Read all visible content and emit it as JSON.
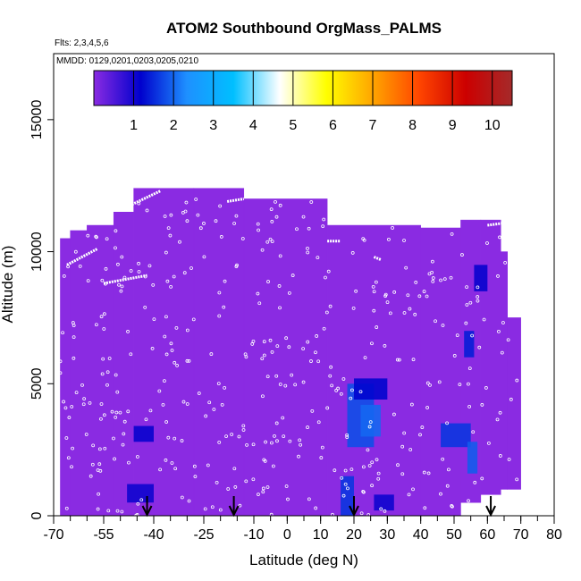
{
  "chart_data": {
    "type": "heatmap",
    "title": "ATOM2 Southbound OrgMass_PALMS",
    "flights_note": "Flts: 2,3,4,5,6",
    "dates_note": "MMDD: 0129,0201,0203,0205,0210",
    "xlabel": "Latitude (deg N)",
    "ylabel": "Altitude (m)",
    "xlim": [
      -70,
      80
    ],
    "ylim": [
      0,
      17500
    ],
    "x_ticks": [
      -70,
      -55,
      -40,
      -25,
      -10,
      0,
      10,
      20,
      30,
      40,
      50,
      60,
      70,
      80
    ],
    "x_minor_step": 5,
    "y_ticks": [
      0,
      5000,
      10000,
      15000
    ],
    "colorbar": {
      "range": [
        0,
        10.5
      ],
      "ticks": [
        1,
        2,
        3,
        4,
        5,
        6,
        7,
        8,
        9,
        10
      ],
      "colors": [
        "#8a2be2",
        "#0000cd",
        "#1e90ff",
        "#00bfff",
        "#ffffff",
        "#ffff00",
        "#ffa500",
        "#ff4500",
        "#cc0000",
        "#a52a2a"
      ]
    },
    "background_color": "#8a2be2",
    "coverage": [
      {
        "x0": -68,
        "x1": -65,
        "y0": 0,
        "y1": 10500
      },
      {
        "x0": -65,
        "x1": -60,
        "y0": 0,
        "y1": 10800
      },
      {
        "x0": -60,
        "x1": -52,
        "y0": 0,
        "y1": 11000
      },
      {
        "x0": -52,
        "x1": -46,
        "y0": 0,
        "y1": 11500
      },
      {
        "x0": -46,
        "x1": -28,
        "y0": 0,
        "y1": 12400
      },
      {
        "x0": -28,
        "x1": -13,
        "y0": 0,
        "y1": 12400
      },
      {
        "x0": -13,
        "x1": 12,
        "y0": 0,
        "y1": 12000
      },
      {
        "x0": 12,
        "x1": 40,
        "y0": 0,
        "y1": 11000
      },
      {
        "x0": 40,
        "x1": 52,
        "y0": 0,
        "y1": 10900
      },
      {
        "x0": 52,
        "x1": 58,
        "y0": 500,
        "y1": 11200
      },
      {
        "x0": 58,
        "x1": 64,
        "y0": 800,
        "y1": 11200
      },
      {
        "x0": 64,
        "x1": 66,
        "y0": 1000,
        "y1": 10000
      },
      {
        "x0": 66,
        "x1": 70,
        "y0": 1000,
        "y1": 7500
      }
    ],
    "dark_patches": [
      {
        "x0": 16,
        "x1": 20,
        "y0": 0,
        "y1": 1500,
        "value": 1.6
      },
      {
        "x0": 18,
        "x1": 26,
        "y0": 2600,
        "y1": 5000,
        "value": 1.8
      },
      {
        "x0": 22,
        "x1": 28,
        "y0": 3000,
        "y1": 4200,
        "value": 2.0
      },
      {
        "x0": 46,
        "x1": 55,
        "y0": 2600,
        "y1": 3500,
        "value": 1.6
      },
      {
        "x0": 54,
        "x1": 57,
        "y0": 1600,
        "y1": 2800,
        "value": 1.9
      },
      {
        "x0": 53,
        "x1": 56,
        "y0": 6000,
        "y1": 7000,
        "value": 1.4
      },
      {
        "x0": 20,
        "x1": 30,
        "y0": 4400,
        "y1": 5200,
        "value": 1.2
      },
      {
        "x0": 56,
        "x1": 60,
        "y0": 8500,
        "y1": 9500,
        "value": 1.1
      },
      {
        "x0": -46,
        "x1": -40,
        "y0": 2800,
        "y1": 3400,
        "value": 1.1
      },
      {
        "x0": -48,
        "x1": -40,
        "y0": 500,
        "y1": 1200,
        "value": 1.05
      },
      {
        "x0": 26,
        "x1": 32,
        "y0": 200,
        "y1": 800,
        "value": 1.05
      }
    ],
    "ramp_tracks": [
      {
        "x0": -66,
        "y0": 9500,
        "x1": -57,
        "y1": 10100
      },
      {
        "x0": -55,
        "y0": 8800,
        "x1": -42,
        "y1": 9100
      },
      {
        "x0": -48,
        "y0": 11700,
        "x1": -38,
        "y1": 12300
      },
      {
        "x0": 60,
        "y0": 11000,
        "x1": 66,
        "y1": 11100
      },
      {
        "x0": -18,
        "y0": 11900,
        "x1": -13,
        "y1": 12000
      },
      {
        "x0": 12,
        "y0": 10400,
        "x1": 16,
        "y1": 10400
      },
      {
        "x0": 26,
        "y0": 9800,
        "x1": 28,
        "y1": 9700
      }
    ],
    "arrows_at_latitude": [
      -42,
      -16,
      20,
      61
    ]
  }
}
